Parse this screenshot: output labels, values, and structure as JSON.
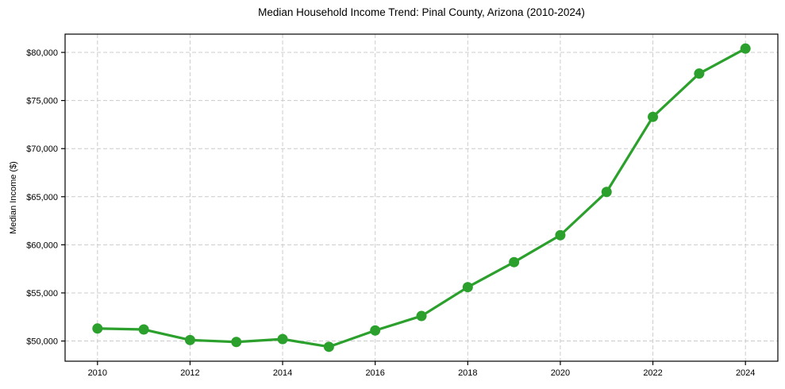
{
  "chart_data": {
    "type": "line",
    "title": "Median Household Income Trend: Pinal County, Arizona (2010-2024)",
    "xlabel": "",
    "ylabel": "Median Income ($)",
    "x": [
      2010,
      2011,
      2012,
      2013,
      2014,
      2015,
      2016,
      2017,
      2018,
      2019,
      2020,
      2021,
      2022,
      2023,
      2024
    ],
    "values": [
      51300,
      51200,
      50100,
      49900,
      50200,
      49400,
      51100,
      52600,
      55600,
      58200,
      61000,
      65500,
      73300,
      77800,
      80400
    ],
    "x_ticks": [
      2010,
      2012,
      2014,
      2016,
      2018,
      2020,
      2022,
      2024
    ],
    "x_tick_labels": [
      "2010",
      "2012",
      "2014",
      "2016",
      "2018",
      "2020",
      "2022",
      "2024"
    ],
    "y_ticks": [
      50000,
      55000,
      60000,
      65000,
      70000,
      75000,
      80000
    ],
    "y_tick_labels": [
      "$50,000",
      "$55,000",
      "$60,000",
      "$65,000",
      "$70,000",
      "$75,000",
      "$80,000"
    ],
    "xlim": [
      2009.3,
      2024.7
    ],
    "ylim": [
      47900,
      81900
    ],
    "grid": true,
    "legend": "none",
    "line_color": "#2ca02c",
    "marker": "circle",
    "grid_color": "#cccccc",
    "axis_color": "#000000",
    "background_color": "#ffffff"
  }
}
